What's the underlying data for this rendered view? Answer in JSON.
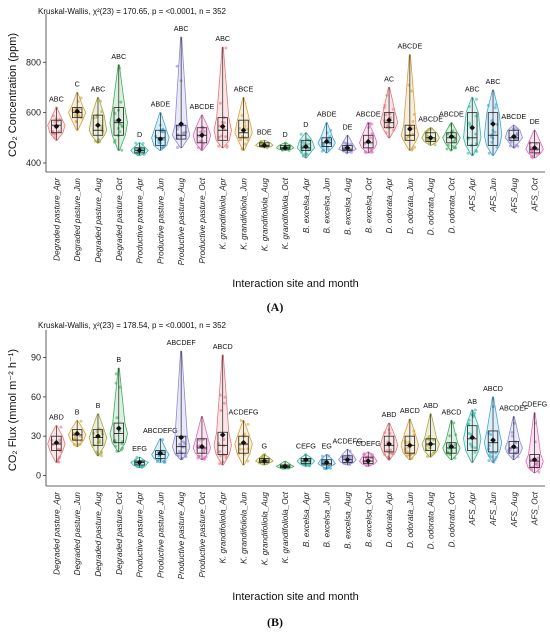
{
  "chart_data": [
    {
      "type": "violin-box",
      "panel_label": "(A)",
      "stats_text": "Kruskal-Wallis, χ²(23) = 170.65, p = <0.0001, n = 352",
      "ylabel": "CO₂ Concentration (ppm)",
      "xlabel": "Interaction site and month",
      "ylim": [
        380,
        960
      ],
      "yticks": [
        400,
        600,
        800
      ],
      "categories": [
        "Degraded pasture_Apr",
        "Degraded pasture_Jun",
        "Degraded pasture_Aug",
        "Degraded pasture_Oct",
        "Productive pasture_Apr",
        "Productive pasture_Jun",
        "Productive pasture_Aug",
        "Productive pasture_Oct",
        "K. grandifoliola_Apr",
        "K. grandifoliola_Jun",
        "K. grandifoliola_Aug",
        "K. grandifoliola_Oct",
        "B. excelsa_Apr",
        "B. excelsa_Jun",
        "B. excelsa_Aug",
        "B. excelsa_Oct",
        "D. odorata_Apr",
        "D. odorata_Jun",
        "D. odorata_Aug",
        "D. odorata_Oct",
        "AFS_Apr",
        "AFS_Jun",
        "AFS_Aug",
        "AFS_Oct"
      ],
      "letters": [
        "ABC",
        "C",
        "ABC",
        "ABC",
        "D",
        "ABDE",
        "ABC",
        "ABCDE",
        "ABC",
        "ABCE",
        "BDE",
        "D",
        "D",
        "ABDE",
        "DE",
        "ABCDE",
        "AC",
        "ABCDE",
        "ABCDE",
        "ABCDE",
        "ABC",
        "ABC",
        "ABCDE",
        "DE"
      ],
      "min": [
        490,
        530,
        480,
        450,
        430,
        450,
        460,
        450,
        460,
        450,
        460,
        450,
        420,
        440,
        440,
        440,
        500,
        450,
        470,
        450,
        430,
        430,
        460,
        420
      ],
      "q1": [
        520,
        580,
        510,
        510,
        440,
        470,
        495,
        480,
        490,
        500,
        465,
        455,
        450,
        465,
        450,
        460,
        540,
        490,
        485,
        480,
        470,
        470,
        490,
        440
      ],
      "median": [
        550,
        600,
        530,
        560,
        450,
        500,
        510,
        510,
        530,
        520,
        470,
        460,
        460,
        480,
        455,
        480,
        560,
        510,
        500,
        500,
        500,
        510,
        500,
        455
      ],
      "q3": [
        570,
        620,
        590,
        620,
        460,
        530,
        550,
        540,
        580,
        570,
        480,
        470,
        490,
        500,
        470,
        510,
        600,
        550,
        520,
        520,
        600,
        600,
        530,
        480
      ],
      "max": [
        620,
        680,
        660,
        790,
        480,
        600,
        900,
        590,
        860,
        660,
        490,
        480,
        520,
        560,
        510,
        560,
        700,
        830,
        540,
        560,
        660,
        690,
        550,
        530
      ],
      "mean": [
        545,
        605,
        550,
        570,
        450,
        495,
        555,
        510,
        545,
        530,
        470,
        460,
        465,
        485,
        460,
        485,
        570,
        535,
        500,
        505,
        540,
        555,
        505,
        460
      ]
    },
    {
      "type": "violin-box",
      "panel_label": "(B)",
      "stats_text": "Kruskal-Wallis, χ²(23) = 178.54, p = <0.0001, n = 352",
      "ylabel": "CO₂ Flux (mmol m⁻² h⁻¹)",
      "xlabel": "Interaction site and month",
      "ylim": [
        -5,
        105
      ],
      "yticks": [
        0,
        30,
        60,
        90
      ],
      "categories": [
        "Degraded pasture_Apr",
        "Degraded pasture_Jun",
        "Degraded pasture_Aug",
        "Degraded pasture_Oct",
        "Productive pasture_Apr",
        "Productive pasture_Jun",
        "Productive pasture_Aug",
        "Productive pasture_Oct",
        "K. grandifoliola_Apr",
        "K. grandifoliola_Jun",
        "K. grandifoliola_Aug",
        "K. grandifoliola_Oct",
        "B. excelsa_Apr",
        "B. excelsa_Jun",
        "B. excelsa_Aug",
        "B. excelsa_Oct",
        "D. odorata_Apr",
        "D. odorata_Jun",
        "D. odorata_Aug",
        "D. odorata_Oct",
        "AFS_Apr",
        "AFS_Jun",
        "AFS_Aug",
        "AFS_Oct"
      ],
      "letters": [
        "ABD",
        "B",
        "B",
        "B",
        "EFG",
        "ABCDEFG",
        "ABCDEF",
        "",
        "ABCD",
        "ACDEFG",
        "G",
        "",
        "CEFG",
        "EG",
        "ACDEFG",
        "CDEFG",
        "ABD",
        "ABCD",
        "ABD",
        "ABCD",
        "AB",
        "ABCD",
        "ABCDEF",
        "CDEFG"
      ],
      "min": [
        10,
        22,
        15,
        18,
        6,
        10,
        12,
        12,
        8,
        8,
        8,
        5,
        7,
        5,
        8,
        7,
        12,
        12,
        14,
        12,
        10,
        10,
        12,
        2
      ],
      "q1": [
        19,
        27,
        23,
        25,
        8,
        13,
        17,
        17,
        16,
        17,
        10,
        6,
        9,
        8,
        10,
        9,
        18,
        17,
        19,
        17,
        19,
        18,
        17,
        6
      ],
      "median": [
        24,
        31,
        29,
        32,
        10,
        16,
        22,
        21,
        23,
        24,
        11,
        7,
        11,
        9,
        12,
        11,
        23,
        23,
        24,
        21,
        28,
        25,
        21,
        11
      ],
      "q3": [
        30,
        35,
        35,
        40,
        11,
        19,
        30,
        28,
        33,
        30,
        13,
        8,
        13,
        12,
        15,
        14,
        30,
        30,
        28,
        25,
        38,
        34,
        26,
        16
      ],
      "max": [
        38,
        42,
        47,
        82,
        14,
        28,
        95,
        45,
        92,
        42,
        16,
        11,
        16,
        16,
        20,
        18,
        40,
        43,
        47,
        42,
        50,
        60,
        45,
        48
      ],
      "mean": [
        25,
        32,
        30,
        36,
        10,
        17,
        29,
        22,
        31,
        25,
        11,
        7,
        12,
        10,
        12,
        11,
        24,
        23,
        24,
        22,
        29,
        27,
        22,
        12
      ]
    }
  ],
  "group_colors": [
    "#e9757b",
    "#d5a13a",
    "#a3a83a",
    "#3fae5a",
    "#36b7a8",
    "#3fa6d8",
    "#8d87dc",
    "#e06ab8"
  ]
}
